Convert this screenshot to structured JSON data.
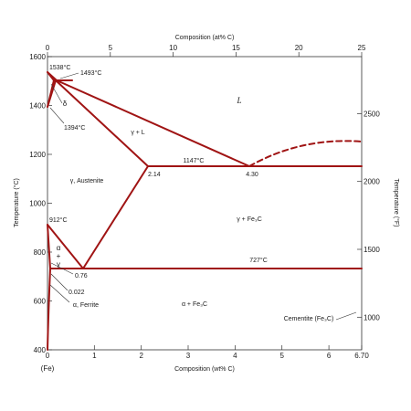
{
  "axes": {
    "top_title": "Composition (at% C)",
    "bottom_title": "Composition (wt% C)",
    "left_title": "Temperature (°C)",
    "right_title": "Temperature (°F)",
    "fe_label": "(Fe)"
  },
  "ticks": {
    "top": [
      "0",
      "5",
      "10",
      "15",
      "20",
      "25"
    ],
    "bottom": [
      "0",
      "1",
      "2",
      "3",
      "4",
      "5",
      "6",
      "6.70"
    ],
    "left": [
      "400",
      "600",
      "800",
      "1000",
      "1200",
      "1400",
      "1600"
    ],
    "right": [
      "1000",
      "1500",
      "2000",
      "2500"
    ]
  },
  "regions": {
    "liquid": "L",
    "gamma_liquid": "γ + L",
    "austenite": "γ, Austenite",
    "gamma_fe3c": "γ + Fe₃C",
    "alpha_fe3c": "α + Fe₃C",
    "ferrite": "α, Ferrite",
    "alpha_gamma_1": "α",
    "alpha_gamma_2": "+",
    "alpha_gamma_3": "γ",
    "delta": "δ",
    "cementite": "Cementite (Fe₃C)"
  },
  "annotations": {
    "t1538": "1538°C",
    "t1493": "1493°C",
    "t1394": "1394°C",
    "t1147": "1147°C",
    "t912": "912°C",
    "t727": "727°C",
    "c214": "2.14",
    "c430": "4.30",
    "c076": "0.76",
    "c0022": "0.022"
  },
  "colors": {
    "phase_line": "#a01414",
    "axis": "#333333",
    "text": "#1a1a1a"
  }
}
